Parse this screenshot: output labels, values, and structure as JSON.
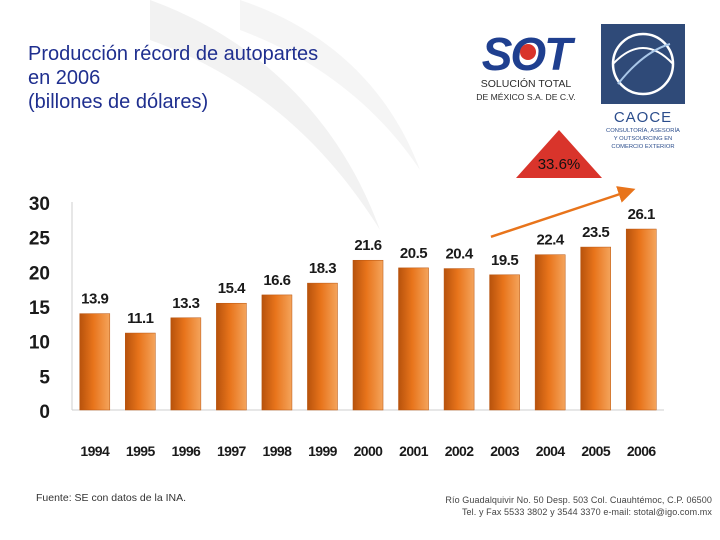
{
  "slide": {
    "title_lines": [
      "Producción récord de autopartes",
      "en 2006",
      "(billones de dólares)"
    ],
    "source_note": "Fuente: SE con datos de la INA.",
    "address_line1": "Río Guadalquivir No. 50 Desp. 503 Col. Cuauhtémoc, C.P. 06500",
    "address_line2": "Tel. y Fax 5533 3802 y 3544 3370     e-mail: stotal@igo.com.mx",
    "growth_label": "33.6%"
  },
  "logos": {
    "sot": {
      "mark": "SOT",
      "line1": "SOLUCIÓN TOTAL",
      "line2": "DE MÉXICO S.A. DE C.V."
    },
    "caoce": {
      "mark": "CAOCE",
      "line1": "CONSULTORÍA, ASESORÍA",
      "line2": "Y OUTSOURCING EN",
      "line3": "COMERCIO EXTERIOR"
    }
  },
  "colors": {
    "title": "#1f2f8f",
    "bar": "#e8741b",
    "bar_dark": "#b7520c",
    "bar_light": "#f4a45c",
    "arrow": "#e8741b",
    "triangle": "#d9342b"
  },
  "chart_data": {
    "type": "bar",
    "categories": [
      "1994",
      "1995",
      "1996",
      "1997",
      "1998",
      "1999",
      "2000",
      "2001",
      "2002",
      "2003",
      "2004",
      "2005",
      "2006"
    ],
    "values": [
      13.9,
      11.1,
      13.3,
      15.4,
      16.6,
      18.3,
      21.6,
      20.5,
      20.4,
      19.5,
      22.4,
      23.5,
      26.1
    ],
    "data_labels": [
      "13.9",
      "11.1",
      "13.3",
      "15.4",
      "16.6",
      "18.3",
      "21.6",
      "20.5",
      "20.4",
      "19.5",
      "22.4",
      "23.5",
      "26.1"
    ],
    "y_ticks": [
      0,
      5,
      10,
      15,
      20,
      25,
      30
    ],
    "ylim": [
      0,
      30
    ],
    "title": "Producción récord de autopartes en 2006 (billones de dólares)",
    "xlabel": "",
    "ylabel": "",
    "annotation": {
      "text": "33.6%",
      "from": "2003",
      "to": "2006"
    }
  }
}
